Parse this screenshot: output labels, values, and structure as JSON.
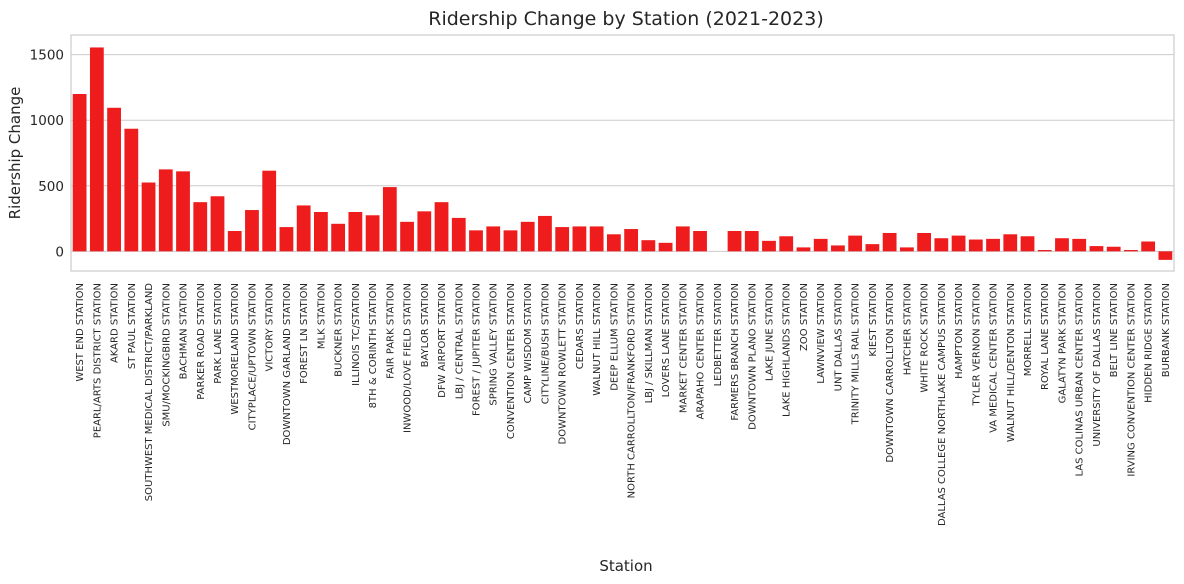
{
  "chart_data": {
    "type": "bar",
    "title": "Ridership Change by Station (2021-2023)",
    "xlabel": "Station",
    "ylabel": "Ridership Change",
    "ylim": [
      -150,
      1650
    ],
    "yticks": [
      0,
      500,
      1000,
      1500
    ],
    "grid": "horizontal",
    "bar_color": "#ee1c1c",
    "categories": [
      "WEST END STATION",
      "PEARL/ARTS DISTRICT STATION",
      "AKARD STATION",
      "ST PAUL STATION",
      "SOUTHWEST MEDICAL DISTRICT/PARKLAND",
      "SMU/MOCKINGBIRD STATION",
      "BACHMAN STATION",
      "PARKER ROAD STATION",
      "PARK LANE STATION",
      "WESTMORELAND STATION",
      "CITYPLACE/UPTOWN STATION",
      "VICTORY STATION",
      "DOWNTOWN GARLAND STATION",
      "FOREST LN STATION",
      "MLK STATION",
      "BUCKNER STATION",
      "ILLINOIS TC/STATION",
      "8TH & CORINTH STATION",
      "FAIR PARK STATION",
      "INWOOD/LOVE FIELD STATION",
      "BAYLOR STATION",
      "DFW AIRPORT STATION",
      "LBJ / CENTRAL STATION",
      "FOREST / JUPITER STATION",
      "SPRING VALLEY STATION",
      "CONVENTION CENTER STATION",
      "CAMP WISDOM STATION",
      "CITYLINE/BUSH STATION",
      "DOWNTOWN ROWLETT STATION",
      "CEDARS STATION",
      "WALNUT HILL STATION",
      "DEEP ELLUM STATION",
      "NORTH CARROLLTON/FRANKFORD STATION",
      "LBJ / SKILLMAN STATION",
      "LOVERS LANE STATION",
      "MARKET CENTER STATION",
      "ARAPAHO CENTER STATION",
      "LEDBETTER STATION",
      "FARMERS BRANCH STATION",
      "DOWNTOWN PLANO STATION",
      "LAKE JUNE STATION",
      "LAKE HIGHLANDS STATION",
      "ZOO STATION",
      "LAWNVIEW STATION",
      "UNT DALLAS STATION",
      "TRINITY MILLS RAIL STATION",
      "KIEST STATION",
      "DOWNTOWN CARROLLTON STATION",
      "HATCHER STATION",
      "WHITE ROCK STATION",
      "DALLAS COLLEGE NORTHLAKE CAMPUS STATION",
      "HAMPTON STATION",
      "TYLER VERNON STATION",
      "VA MEDICAL CENTER STATION",
      "WALNUT HILL/DENTON STATION",
      "MORRELL STATION",
      "ROYAL LANE STATION",
      "GALATYN PARK STATION",
      "LAS COLINAS URBAN CENTER STATION",
      "UNIVERSITY OF DALLAS STATION",
      "BELT LINE STATION",
      "IRVING CONVENTION CENTER STATION",
      "HIDDEN RIDGE STATION",
      "BURBANK STATION"
    ],
    "values": [
      1200,
      1555,
      1095,
      935,
      525,
      625,
      610,
      375,
      420,
      155,
      315,
      615,
      185,
      350,
      300,
      210,
      300,
      275,
      490,
      225,
      305,
      375,
      255,
      160,
      190,
      160,
      225,
      270,
      185,
      190,
      190,
      130,
      170,
      85,
      65,
      190,
      155,
      0,
      155,
      155,
      80,
      115,
      30,
      95,
      45,
      120,
      55,
      140,
      30,
      140,
      100,
      120,
      90,
      95,
      130,
      115,
      10,
      100,
      95,
      40,
      35,
      10,
      75,
      -65
    ]
  }
}
